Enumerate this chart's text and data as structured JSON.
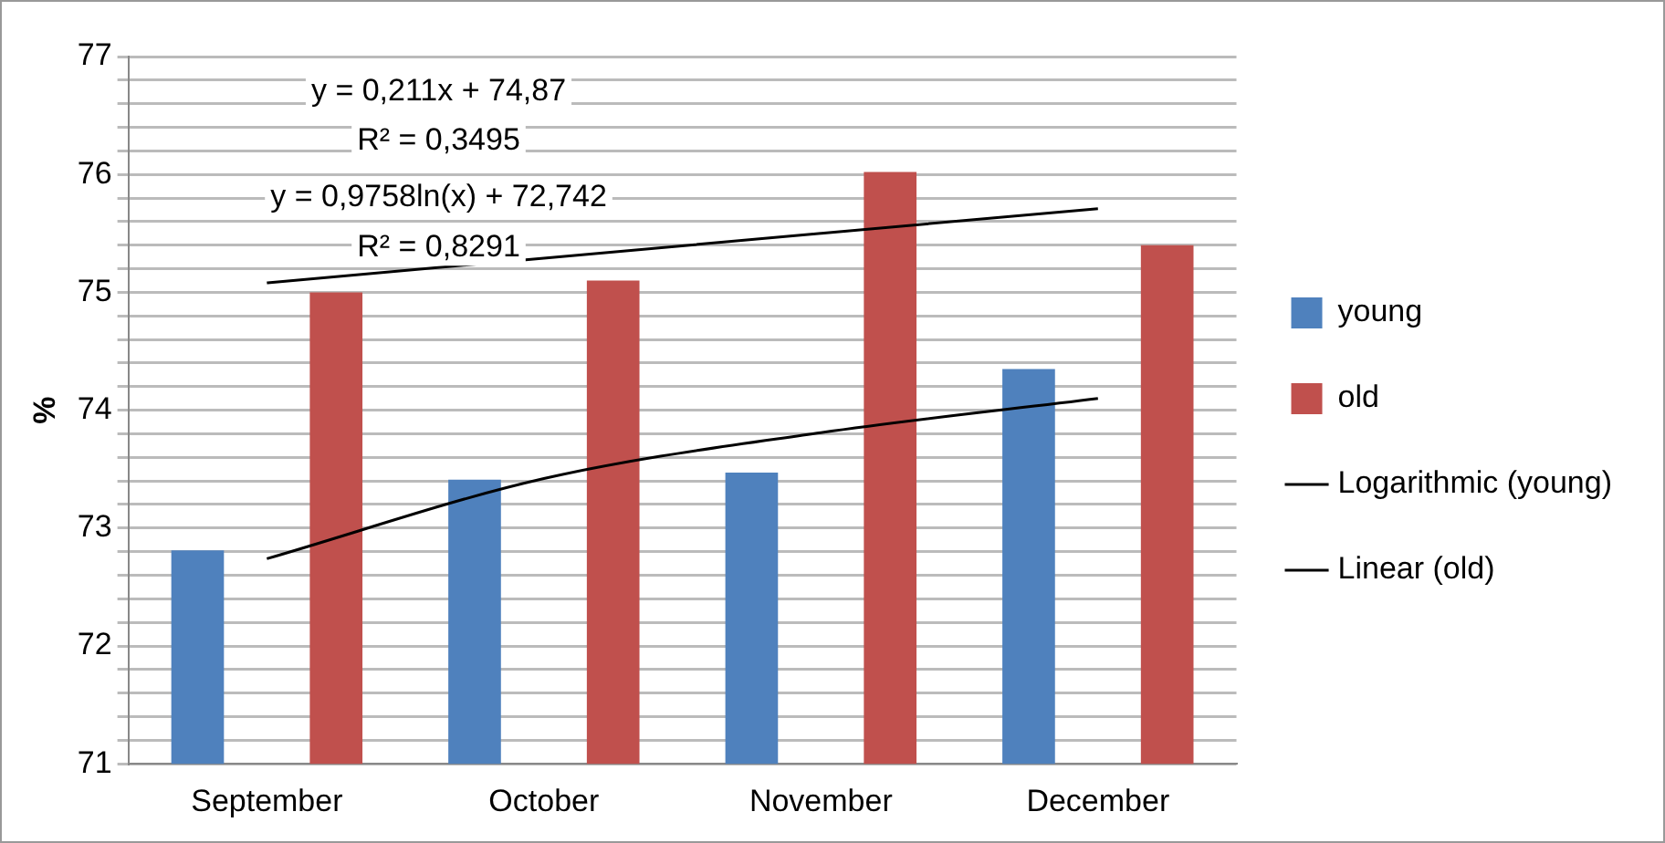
{
  "chart_data": {
    "type": "bar",
    "ylabel": "%",
    "categories": [
      "September",
      "October",
      "November",
      "December"
    ],
    "series": [
      {
        "name": "young",
        "color": "#4f81bd",
        "values": [
          72.81,
          73.41,
          73.47,
          74.35
        ]
      },
      {
        "name": "old",
        "color": "#c0504d",
        "values": [
          75.0,
          75.1,
          76.02,
          75.4
        ]
      },
      {
        "name": "Logarithmic (young)",
        "type": "line",
        "color": "#000000",
        "values": [
          72.74,
          73.42,
          73.81,
          74.1
        ]
      },
      {
        "name": "Linear (old)",
        "type": "line",
        "color": "#000000",
        "values": [
          75.08,
          75.29,
          75.5,
          75.71
        ]
      }
    ],
    "ylim": [
      71,
      77
    ],
    "yticks": [
      71,
      {
        "value": 71.2,
        "label": null
      },
      {
        "value": 71.4,
        "label": null
      },
      {
        "value": 71.6,
        "label": null
      },
      {
        "value": 71.8,
        "label": null
      },
      72,
      {
        "value": 72.2,
        "label": null
      },
      {
        "value": 72.4,
        "label": null
      },
      {
        "value": 72.6,
        "label": null
      },
      {
        "value": 72.8,
        "label": null
      },
      73,
      {
        "value": 73.2,
        "label": null
      },
      {
        "value": 73.4,
        "label": null
      },
      {
        "value": 73.6,
        "label": null
      },
      {
        "value": 73.8,
        "label": null
      },
      74,
      {
        "value": 74.2,
        "label": null
      },
      {
        "value": 74.4,
        "label": null
      },
      {
        "value": 74.6,
        "label": null
      },
      {
        "value": 74.8,
        "label": null
      },
      75,
      {
        "value": 75.2,
        "label": null
      },
      {
        "value": 75.4,
        "label": null
      },
      {
        "value": 75.6,
        "label": null
      },
      {
        "value": 75.8,
        "label": null
      },
      76,
      {
        "value": 76.2,
        "label": null
      },
      {
        "value": 76.4,
        "label": null
      },
      {
        "value": 76.6,
        "label": null
      },
      {
        "value": 76.8,
        "label": null
      },
      77
    ],
    "annotations": [
      "y = 0,211x + 74,87",
      "R² = 0,3495",
      "y = 0,9758ln(x) + 72,742",
      "R² = 0,8291"
    ],
    "grid": "y",
    "legend": "right",
    "marker": "none"
  }
}
